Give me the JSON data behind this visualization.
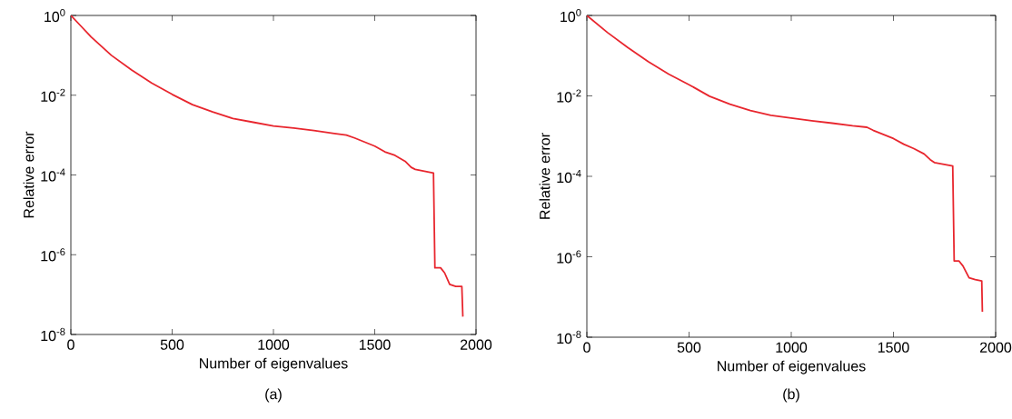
{
  "chart_data": [
    {
      "type": "line",
      "xlabel": "Number of eigenvalues",
      "ylabel": "Relative error",
      "annotations": [
        "(a)"
      ],
      "log": "y",
      "grid": false,
      "xlim": [
        0,
        2000
      ],
      "xticks": [
        0,
        500,
        1000,
        1500,
        2000
      ],
      "ylim": [
        1e-08,
        1
      ],
      "yticks": [
        {
          "value": 1,
          "label": "10$^{0}$"
        },
        {
          "value": 0.01,
          "label": "10$^{-2}$"
        },
        {
          "value": 0.0001,
          "label": "10$^{-4}$"
        },
        {
          "value": 1e-06,
          "label": "10$^{-6}$"
        },
        {
          "value": 1e-08,
          "label": "10$^{-8}$"
        }
      ],
      "series": [
        {
          "color": "#e8262e",
          "x": [
            0,
            50,
            100,
            200,
            300,
            400,
            500,
            600,
            700,
            800,
            900,
            1000,
            1100,
            1200,
            1300,
            1360,
            1400,
            1500,
            1550,
            1600,
            1650,
            1680,
            1700,
            1790,
            1797,
            1825,
            1845,
            1870,
            1900,
            1930,
            1935
          ],
          "values": [
            1,
            0.54,
            0.29,
            0.1,
            0.043,
            0.02,
            0.0105,
            0.0058,
            0.0038,
            0.0026,
            0.0021,
            0.0017,
            0.0015,
            0.0013,
            0.0011,
            0.001,
            0.00085,
            0.00053,
            0.00038,
            0.00031,
            0.00022,
            0.000155,
            0.000138,
            0.000112,
            4.7e-07,
            4.7e-07,
            3.5e-07,
            1.8e-07,
            1.6e-07,
            1.6e-07,
            2.8e-08
          ]
        }
      ]
    },
    {
      "type": "line",
      "xlabel": "Number of eigenvalues",
      "ylabel": "Relative error",
      "annotations": [
        "(b)"
      ],
      "log": "y",
      "grid": false,
      "xlim": [
        0,
        2000
      ],
      "xticks": [
        0,
        500,
        1000,
        1500,
        2000
      ],
      "ylim": [
        1e-08,
        1
      ],
      "yticks": [
        {
          "value": 1,
          "label": "10$^{0}$"
        },
        {
          "value": 0.01,
          "label": "10$^{-2}$"
        },
        {
          "value": 0.0001,
          "label": "10$^{-4}$"
        },
        {
          "value": 1e-06,
          "label": "10$^{-6}$"
        },
        {
          "value": 1e-08,
          "label": "10$^{-8}$"
        }
      ],
      "series": [
        {
          "color": "#e8262e",
          "x": [
            0,
            100,
            200,
            300,
            400,
            500,
            600,
            700,
            800,
            900,
            1000,
            1100,
            1200,
            1300,
            1370,
            1400,
            1500,
            1550,
            1600,
            1650,
            1680,
            1700,
            1790,
            1797,
            1820,
            1840,
            1870,
            1900,
            1932,
            1935
          ],
          "values": [
            1,
            0.38,
            0.16,
            0.071,
            0.035,
            0.019,
            0.0098,
            0.0062,
            0.0043,
            0.0033,
            0.0028,
            0.0024,
            0.0021,
            0.0018,
            0.00166,
            0.0014,
            0.00087,
            0.00063,
            0.00049,
            0.00036,
            0.00026,
            0.00022,
            0.00018,
            7.9e-07,
            7.9e-07,
            5.9e-07,
            3e-07,
            2.7e-07,
            2.5e-07,
            4.3e-08
          ]
        }
      ]
    }
  ]
}
